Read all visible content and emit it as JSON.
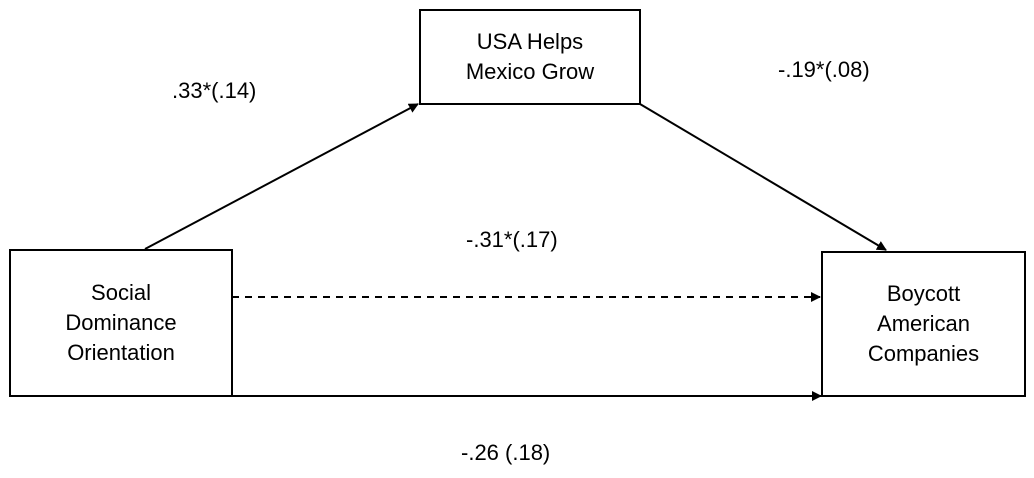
{
  "nodes": {
    "mediator": {
      "lines": [
        "USA Helps",
        "Mexico Grow"
      ]
    },
    "predictor": {
      "lines": [
        "Social",
        "Dominance",
        "Orientation"
      ]
    },
    "outcome": {
      "lines": [
        "Boycott",
        "American",
        "Companies"
      ]
    }
  },
  "paths": {
    "a": {
      "label": ".33*(.14)",
      "style": "solid"
    },
    "b": {
      "label": "-.19*(.08)",
      "style": "solid"
    },
    "c_prime": {
      "label": "-.31*(.17)",
      "style": "dashed"
    },
    "c": {
      "label": "-.26 (.18)",
      "style": "solid"
    }
  }
}
